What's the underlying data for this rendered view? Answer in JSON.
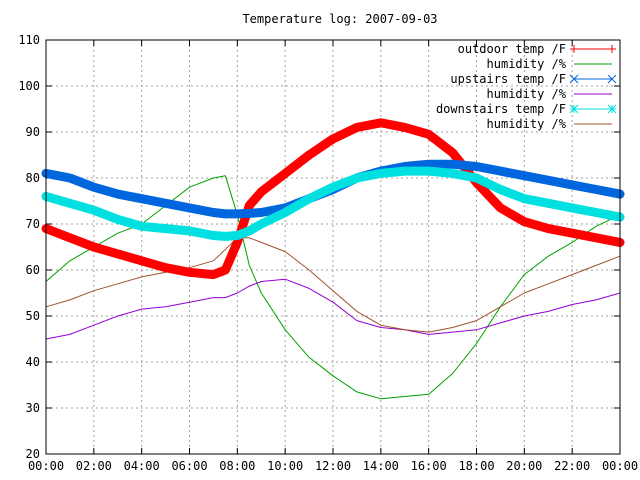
{
  "chart_data": {
    "type": "line",
    "title": "Temperature log: 2007-09-03",
    "xlabel": "",
    "ylabel": "",
    "xlim": [
      0,
      24
    ],
    "ylim": [
      20,
      110
    ],
    "x_ticks": [
      "00:00",
      "02:00",
      "04:00",
      "06:00",
      "08:00",
      "10:00",
      "12:00",
      "14:00",
      "16:00",
      "18:00",
      "20:00",
      "22:00",
      "00:00"
    ],
    "y_ticks": [
      20,
      30,
      40,
      50,
      60,
      70,
      80,
      90,
      100,
      110
    ],
    "grid": true,
    "legend_position": "top-right",
    "x": [
      0,
      1,
      2,
      3,
      4,
      5,
      6,
      7,
      7.5,
      8,
      8.5,
      9,
      10,
      11,
      12,
      13,
      14,
      15,
      16,
      17,
      18,
      19,
      20,
      21,
      22,
      23,
      24
    ],
    "series": [
      {
        "name": "outdoor temp /F",
        "color": "#ff0000",
        "marker": "plus",
        "values": [
          69,
          67,
          65,
          63.5,
          62,
          60.5,
          59.5,
          59,
          60,
          66,
          74,
          77,
          81,
          85,
          88.5,
          91,
          92,
          91,
          89.5,
          85.5,
          79,
          73.5,
          70.5,
          69,
          68,
          67,
          66
        ]
      },
      {
        "name": "humidity /%",
        "color": "#00a000",
        "marker": "none",
        "values": [
          57.5,
          62,
          65,
          68,
          70,
          74,
          78,
          80,
          80.5,
          72,
          61,
          55,
          47,
          41,
          37,
          33.5,
          32,
          32.5,
          33,
          37.5,
          44,
          52,
          59,
          63,
          66,
          69.5,
          72
        ]
      },
      {
        "name": "upstairs temp /F",
        "color": "#0066dd",
        "marker": "x",
        "values": [
          81,
          80,
          78,
          76.5,
          75.5,
          74.5,
          73.5,
          72.5,
          72.2,
          72.2,
          72.3,
          72.5,
          73.5,
          75.5,
          77.5,
          80,
          81.5,
          82.5,
          83,
          83,
          82.5,
          81.5,
          80.5,
          79.5,
          78.5,
          77.5,
          76.5
        ]
      },
      {
        "name": "humidity /%",
        "color": "#9400d3",
        "marker": "none",
        "values": [
          45,
          46,
          48,
          50,
          51.5,
          52,
          53,
          54,
          54,
          55,
          56.5,
          57.5,
          58,
          56,
          53,
          49,
          47.5,
          47,
          46,
          46.5,
          47,
          48.5,
          50,
          51,
          52.5,
          53.5,
          55
        ]
      },
      {
        "name": "downstairs temp /F",
        "color": "#00e0e0",
        "marker": "star",
        "values": [
          76,
          74.5,
          73,
          71,
          69.5,
          69,
          68.5,
          67.5,
          67.3,
          67.5,
          68.5,
          70,
          72.5,
          75.5,
          78,
          80,
          81,
          81.5,
          81.5,
          81,
          80,
          77.5,
          75.5,
          74.5,
          73.5,
          72.5,
          71.5
        ]
      },
      {
        "name": "humidity /%",
        "color": "#a0522d",
        "marker": "none",
        "values": [
          52,
          53.5,
          55.5,
          57,
          58.5,
          59.5,
          60.5,
          62,
          64.5,
          67,
          67,
          66,
          64,
          60,
          55.5,
          51,
          48,
          47,
          46.5,
          47.5,
          49,
          52,
          55,
          57,
          59,
          61,
          63
        ]
      }
    ]
  }
}
